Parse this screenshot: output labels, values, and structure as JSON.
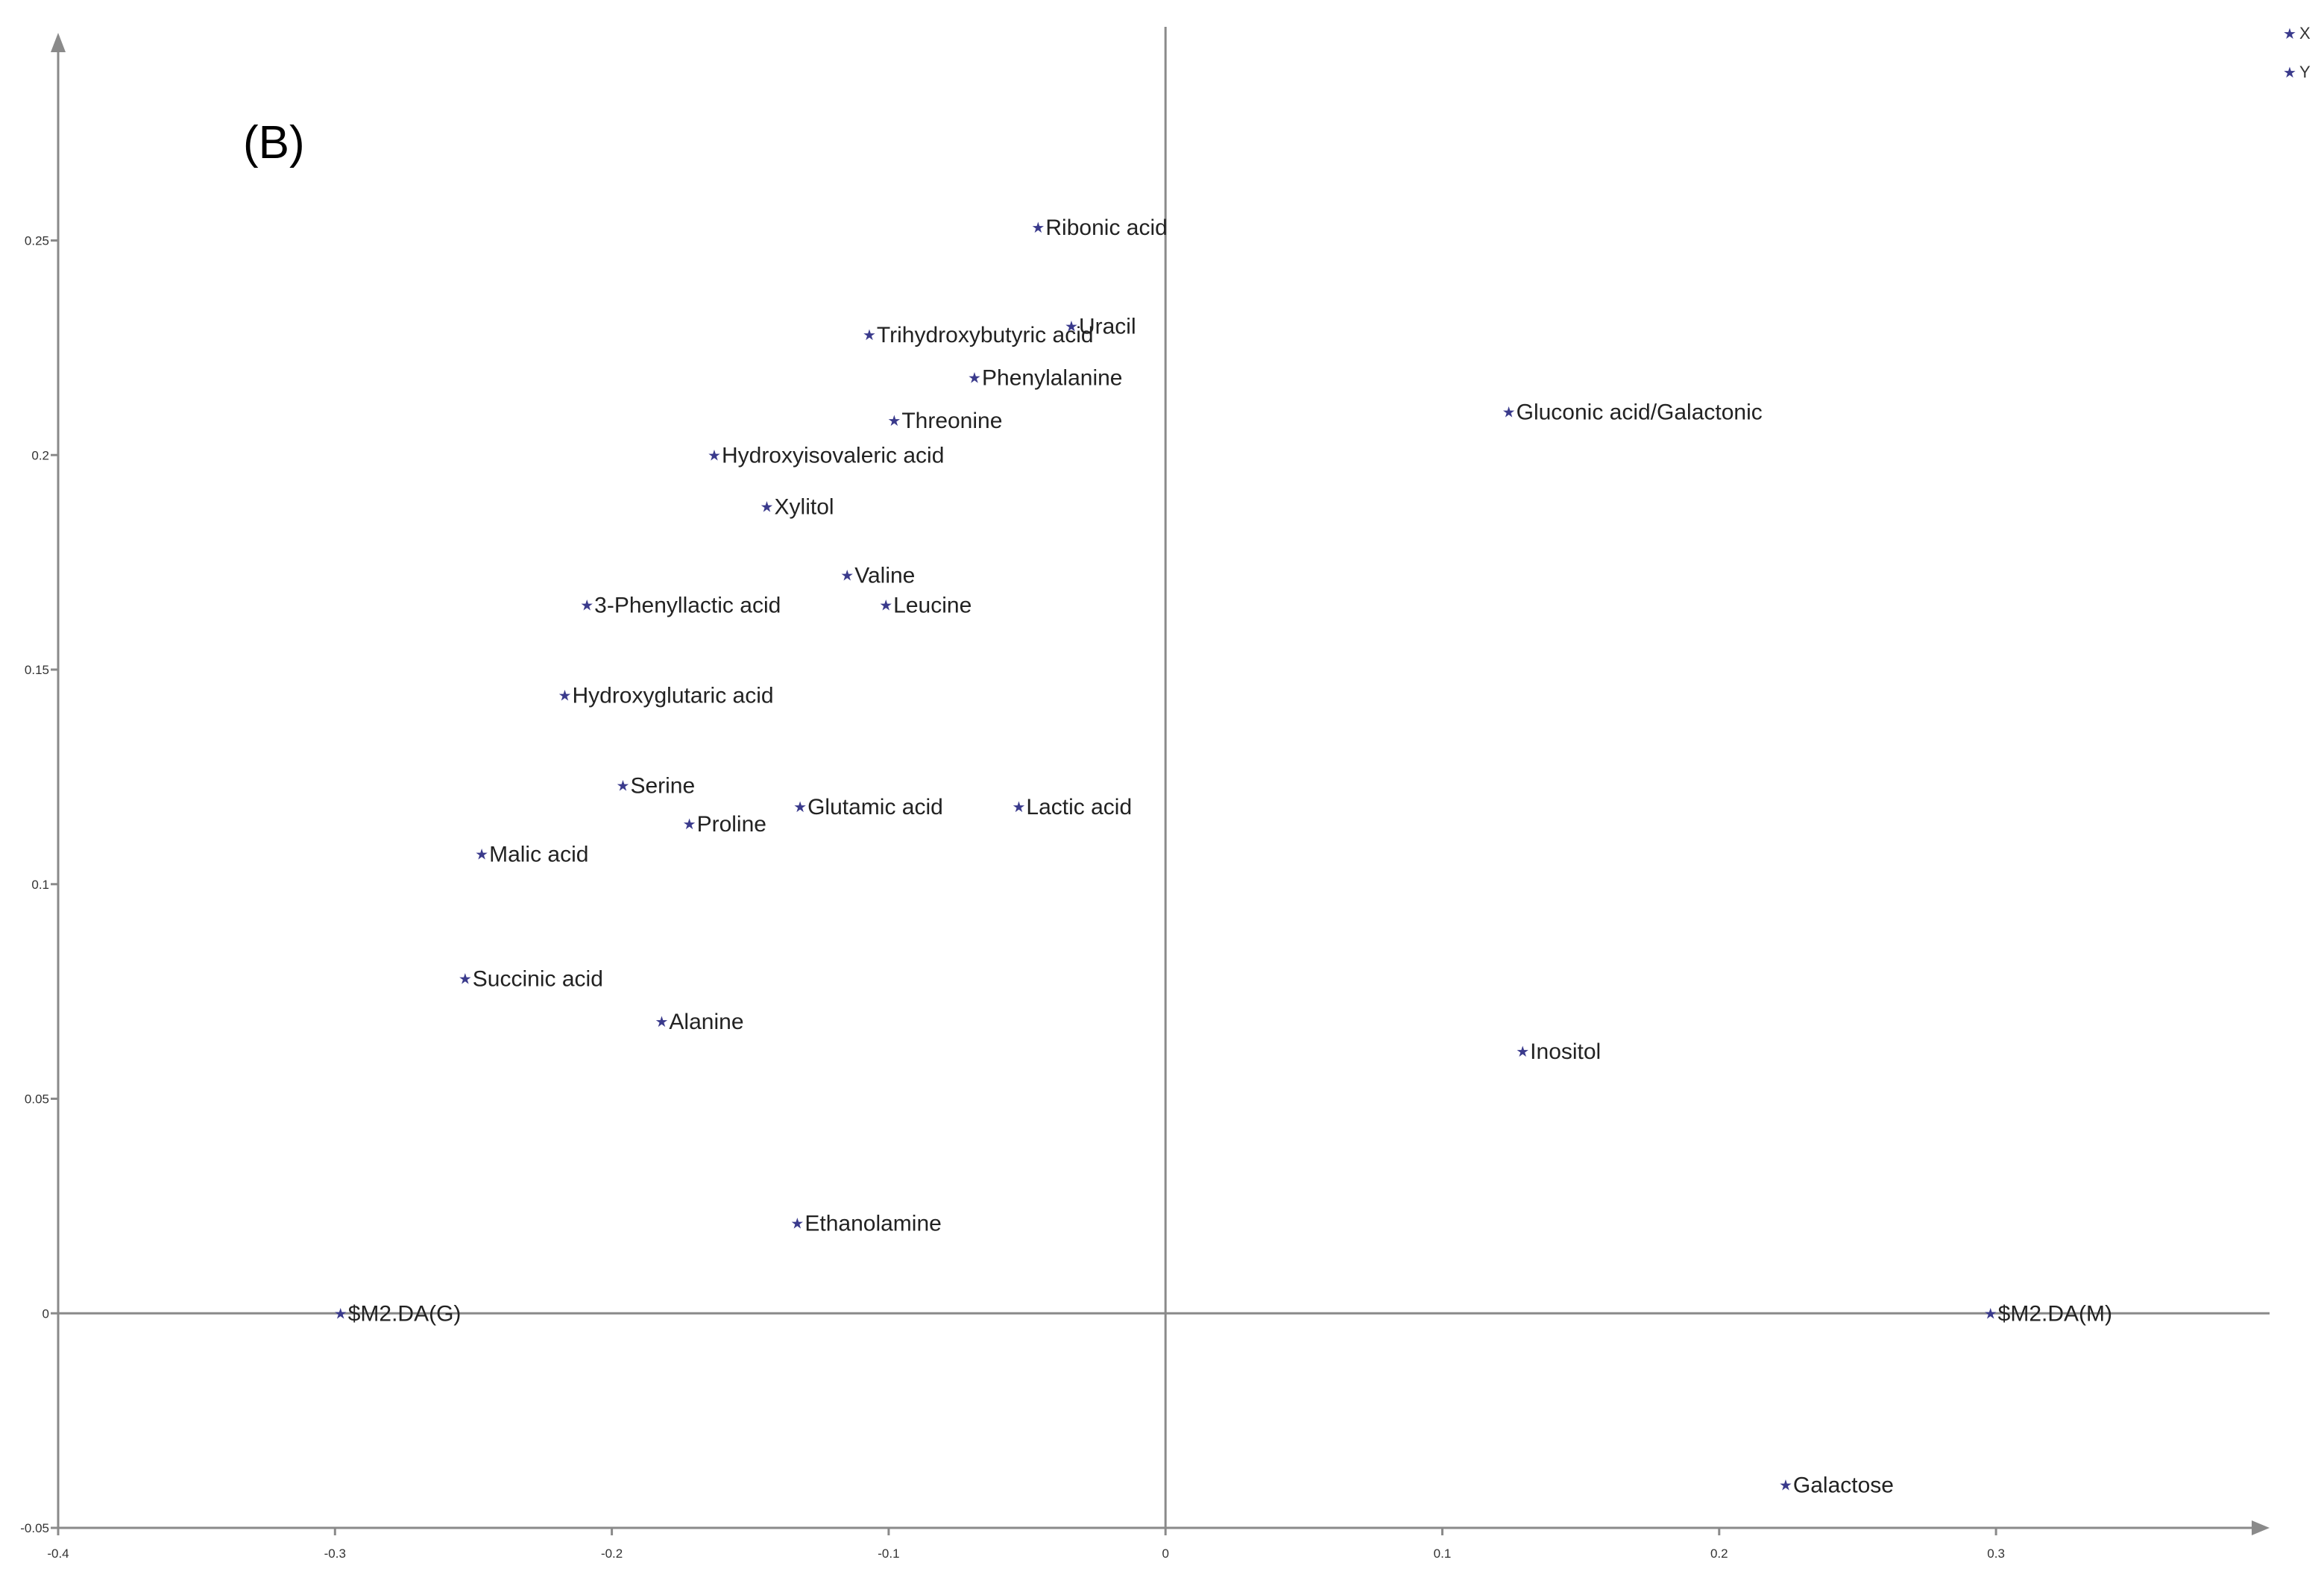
{
  "panel_label": "(B)",
  "colors": {
    "marker": "#3a3a8c",
    "axis": "#8a8a8a"
  },
  "legend": [
    {
      "label": "X"
    },
    {
      "label": "Y"
    }
  ],
  "chart_data": {
    "type": "scatter",
    "title": "",
    "xlabel": "",
    "ylabel": "",
    "xlim": [
      -0.4,
      0.4
    ],
    "ylim": [
      -0.05,
      0.3
    ],
    "grid": false,
    "legend_placement": "top-right",
    "x_ticks": [
      {
        "v": -0.4,
        "label": "-0.4"
      },
      {
        "v": -0.3,
        "label": "-0.3"
      },
      {
        "v": -0.2,
        "label": "-0.2"
      },
      {
        "v": -0.1,
        "label": "-0.1"
      },
      {
        "v": 0,
        "label": "0"
      },
      {
        "v": 0.1,
        "label": "0.1"
      },
      {
        "v": 0.2,
        "label": "0.2"
      },
      {
        "v": 0.3,
        "label": "0.3"
      }
    ],
    "y_ticks": [
      {
        "v": -0.05,
        "label": "-0.05"
      },
      {
        "v": 0,
        "label": "0"
      },
      {
        "v": 0.05,
        "label": "0.05"
      },
      {
        "v": 0.1,
        "label": "0.1"
      },
      {
        "v": 0.15,
        "label": "0.15"
      },
      {
        "v": 0.2,
        "label": "0.2"
      },
      {
        "v": 0.25,
        "label": "0.25"
      }
    ],
    "points": [
      {
        "label": "Ribonic acid",
        "x": -0.046,
        "y": 0.253
      },
      {
        "label": "Uracil",
        "x": -0.034,
        "y": 0.23
      },
      {
        "label": "Trihydroxybutyric acid",
        "x": -0.107,
        "y": 0.228
      },
      {
        "label": "Phenylalanine",
        "x": -0.069,
        "y": 0.218
      },
      {
        "label": "Gluconic acid/Galactonic",
        "x": 0.124,
        "y": 0.21
      },
      {
        "label": "Threonine",
        "x": -0.098,
        "y": 0.208
      },
      {
        "label": "Hydroxyisovaleric acid",
        "x": -0.163,
        "y": 0.2
      },
      {
        "label": "Xylitol",
        "x": -0.144,
        "y": 0.188
      },
      {
        "label": "Valine",
        "x": -0.115,
        "y": 0.172
      },
      {
        "label": "3-Phenyllactic acid",
        "x": -0.209,
        "y": 0.165
      },
      {
        "label": "Leucine",
        "x": -0.101,
        "y": 0.165
      },
      {
        "label": "Hydroxyglutaric acid",
        "x": -0.217,
        "y": 0.144
      },
      {
        "label": "Serine",
        "x": -0.196,
        "y": 0.123
      },
      {
        "label": "Glutamic acid",
        "x": -0.132,
        "y": 0.118
      },
      {
        "label": "Lactic acid",
        "x": -0.053,
        "y": 0.118
      },
      {
        "label": "Proline",
        "x": -0.172,
        "y": 0.114
      },
      {
        "label": "Malic acid",
        "x": -0.247,
        "y": 0.107
      },
      {
        "label": "Succinic acid",
        "x": -0.253,
        "y": 0.078
      },
      {
        "label": "Alanine",
        "x": -0.182,
        "y": 0.068
      },
      {
        "label": "Inositol",
        "x": 0.129,
        "y": 0.061
      },
      {
        "label": "Ethanolamine",
        "x": -0.133,
        "y": 0.021
      },
      {
        "label": "$M2.DA(G)",
        "x": -0.298,
        "y": 0.0
      },
      {
        "label": "$M2.DA(M)",
        "x": 0.298,
        "y": 0.0
      },
      {
        "label": "Galactose",
        "x": 0.224,
        "y": -0.04
      }
    ]
  }
}
